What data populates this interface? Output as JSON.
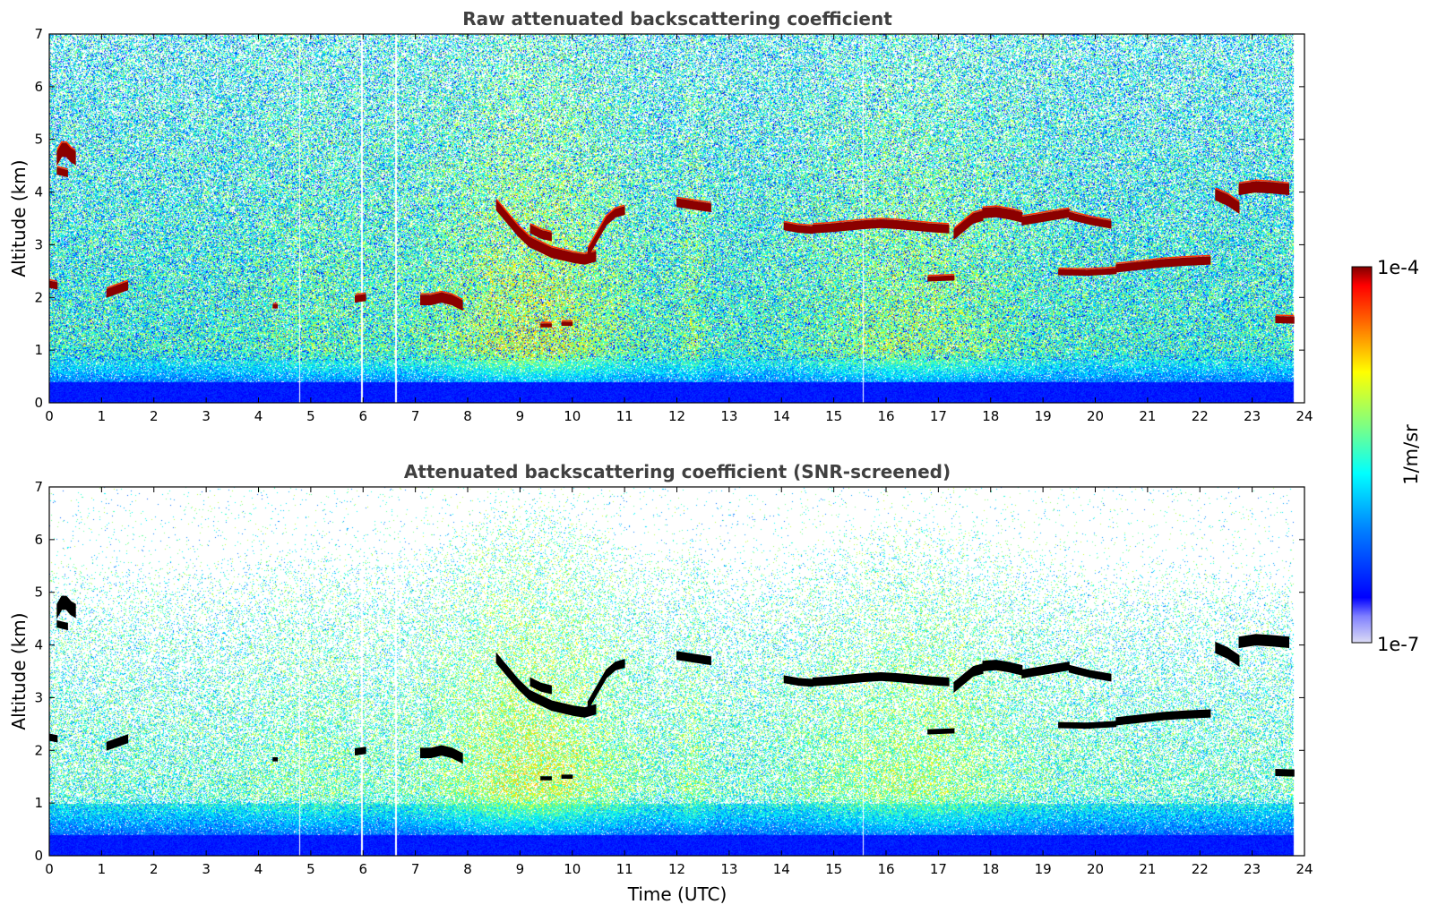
{
  "chart_data": [
    {
      "type": "heatmap",
      "title": "Raw attenuated backscattering coefficient",
      "xlabel": "",
      "ylabel": "Altitude (km)",
      "xlim": [
        0,
        24
      ],
      "ylim": [
        0,
        7
      ],
      "x_ticks": [
        "0",
        "1",
        "2",
        "3",
        "4",
        "5",
        "6",
        "7",
        "8",
        "9",
        "10",
        "11",
        "12",
        "13",
        "14",
        "15",
        "16",
        "17",
        "18",
        "19",
        "20",
        "21",
        "22",
        "23",
        "24"
      ],
      "y_ticks": [
        "0",
        "1",
        "2",
        "3",
        "4",
        "5",
        "6",
        "7"
      ],
      "data_end_hour": 23.8,
      "layers": [
        {
          "start": 0.15,
          "end": 0.5,
          "altitude": [
            4.65,
            4.8,
            4.8,
            4.7,
            4.65
          ],
          "thickness": 0.25
        },
        {
          "start": 0.15,
          "end": 0.35,
          "altitude": [
            4.4,
            4.35
          ],
          "thickness": 0.12
        },
        {
          "start": 0.0,
          "end": 0.15,
          "altitude": [
            2.25,
            2.22
          ],
          "thickness": 0.12
        },
        {
          "start": 1.1,
          "end": 1.5,
          "altitude": [
            2.08,
            2.15,
            2.22
          ],
          "thickness": 0.15
        },
        {
          "start": 5.85,
          "end": 6.05,
          "altitude": [
            1.97,
            2.0
          ],
          "thickness": 0.12
        },
        {
          "start": 7.1,
          "end": 7.9,
          "altitude": [
            1.95,
            1.95,
            2.0,
            1.95,
            1.85
          ],
          "thickness": 0.18
        },
        {
          "start": 8.55,
          "end": 10.45,
          "altitude": [
            3.75,
            3.5,
            3.25,
            3.05,
            2.95,
            2.85,
            2.8,
            2.75,
            2.72,
            2.78
          ],
          "thickness": 0.18
        },
        {
          "start": 9.2,
          "end": 9.6,
          "altitude": [
            3.3,
            3.2,
            3.15
          ],
          "thickness": 0.15
        },
        {
          "start": 10.3,
          "end": 11.0,
          "altitude": [
            2.85,
            3.15,
            3.45,
            3.6,
            3.65
          ],
          "thickness": 0.15
        },
        {
          "start": 12.0,
          "end": 12.65,
          "altitude": [
            3.8,
            3.75,
            3.7
          ],
          "thickness": 0.15
        },
        {
          "start": 14.05,
          "end": 14.6,
          "altitude": [
            3.35,
            3.3,
            3.28
          ],
          "thickness": 0.13
        },
        {
          "start": 14.6,
          "end": 17.2,
          "altitude": [
            3.3,
            3.32,
            3.35,
            3.38,
            3.4,
            3.38,
            3.35,
            3.32,
            3.3
          ],
          "thickness": 0.15
        },
        {
          "start": 17.3,
          "end": 17.85,
          "altitude": [
            3.2,
            3.35,
            3.5,
            3.55
          ],
          "thickness": 0.18
        },
        {
          "start": 17.85,
          "end": 18.6,
          "altitude": [
            3.6,
            3.62,
            3.58,
            3.52
          ],
          "thickness": 0.18
        },
        {
          "start": 18.6,
          "end": 19.5,
          "altitude": [
            3.45,
            3.5,
            3.55,
            3.6
          ],
          "thickness": 0.15
        },
        {
          "start": 19.5,
          "end": 20.3,
          "altitude": [
            3.55,
            3.45,
            3.38
          ],
          "thickness": 0.13
        },
        {
          "start": 16.8,
          "end": 17.3,
          "altitude": [
            2.35,
            2.37
          ],
          "thickness": 0.08
        },
        {
          "start": 19.3,
          "end": 20.4,
          "altitude": [
            2.48,
            2.47,
            2.5
          ],
          "thickness": 0.1
        },
        {
          "start": 20.4,
          "end": 22.2,
          "altitude": [
            2.55,
            2.6,
            2.65,
            2.68,
            2.7
          ],
          "thickness": 0.14
        },
        {
          "start": 22.3,
          "end": 22.75,
          "altitude": [
            3.95,
            3.85,
            3.7
          ],
          "thickness": 0.2
        },
        {
          "start": 22.75,
          "end": 23.7,
          "altitude": [
            4.05,
            4.1,
            4.08,
            4.05
          ],
          "thickness": 0.2
        },
        {
          "start": 23.45,
          "end": 23.8,
          "altitude": [
            1.58,
            1.57
          ],
          "thickness": 0.12
        },
        {
          "start": 9.4,
          "end": 9.6,
          "altitude": [
            1.47
          ],
          "thickness": 0.06
        },
        {
          "start": 9.8,
          "end": 10.0,
          "altitude": [
            1.5
          ],
          "thickness": 0.06
        },
        {
          "start": 4.28,
          "end": 4.36,
          "altitude": [
            1.83
          ],
          "thickness": 0.06
        }
      ]
    },
    {
      "type": "heatmap",
      "title": "Attenuated backscattering coefficient (SNR-screened)",
      "xlabel": "Time (UTC)",
      "ylabel": "Altitude (km)",
      "xlim": [
        0,
        24
      ],
      "ylim": [
        0,
        7
      ],
      "x_ticks": [
        "0",
        "1",
        "2",
        "3",
        "4",
        "5",
        "6",
        "7",
        "8",
        "9",
        "10",
        "11",
        "12",
        "13",
        "14",
        "15",
        "16",
        "17",
        "18",
        "19",
        "20",
        "21",
        "22",
        "23",
        "24"
      ],
      "y_ticks": [
        "0",
        "1",
        "2",
        "3",
        "4",
        "5",
        "6",
        "7"
      ],
      "data_end_hour": 23.8,
      "screened": true
    }
  ],
  "colorbar": {
    "label": "1/m/sr",
    "max_label": "1e-4",
    "min_label": "1e-7",
    "scale": "log",
    "colormap": "jet"
  },
  "colors": {
    "title": "#404040",
    "layer_raw": "#8b0000",
    "layer_screened": "#000000"
  }
}
